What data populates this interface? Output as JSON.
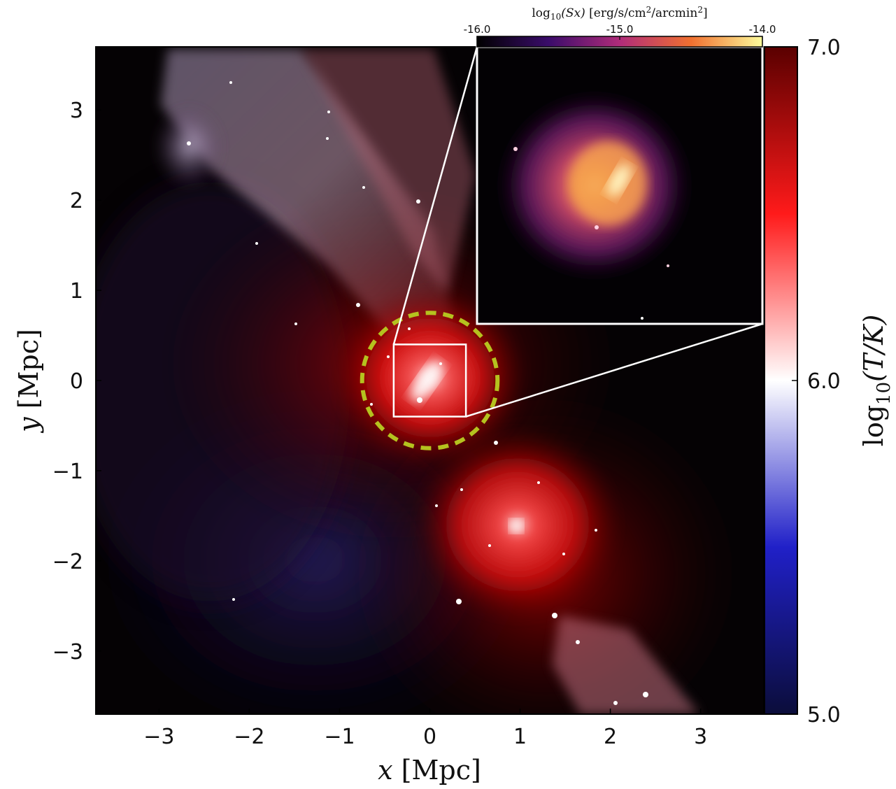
{
  "panel": {
    "x_axis": {
      "label_var": "x",
      "label_unit": "[Mpc]",
      "ticks": [
        "−3",
        "−2",
        "−1",
        "0",
        "1",
        "2",
        "3"
      ],
      "tick_values": [
        -3,
        -2,
        -1,
        0,
        1,
        2,
        3
      ],
      "range": [
        -3.7,
        3.7
      ]
    },
    "y_axis": {
      "label_var": "y",
      "label_unit": "[Mpc]",
      "ticks": [
        "3",
        "2",
        "1",
        "0",
        "−1",
        "−2",
        "−3"
      ],
      "tick_values": [
        3,
        2,
        1,
        0,
        -1,
        -2,
        -3
      ],
      "range": [
        -3.7,
        3.7
      ]
    },
    "circle": {
      "center": [
        0,
        0
      ],
      "radius_mpc": 0.75,
      "color": "#b5c21f"
    },
    "zoom_box": {
      "x_range": [
        -0.4,
        0.4
      ],
      "y_range": [
        -0.4,
        0.4
      ],
      "color": "#ffffff"
    }
  },
  "temperature_colorbar": {
    "label_prefix": "log",
    "label_sub": "10",
    "label_body": "(T/K)",
    "ticks": [
      "7.0",
      "6.0",
      "5.0"
    ],
    "tick_values": [
      7.0,
      6.0,
      5.0
    ],
    "range": [
      5.0,
      7.0
    ],
    "colors": [
      "#0b0d3a",
      "#2020c8",
      "#ffffff",
      "#ff1a1a",
      "#5a0000"
    ]
  },
  "inset": {
    "colorbar": {
      "label_prefix": "log",
      "label_sub": "10",
      "label_var": "(Sx)",
      "label_unit": "[erg/s/cm",
      "label_unit_sup": "2",
      "label_unit_mid": "/arcmin",
      "label_unit_sup2": "2",
      "label_unit_end": "]",
      "ticks": [
        "-16.0",
        "-15.0",
        "-14.0"
      ],
      "tick_values": [
        -16.0,
        -15.0,
        -14.0
      ],
      "range": [
        -16.0,
        -14.0
      ],
      "colors": [
        "#000000",
        "#3a0c6a",
        "#b02c7a",
        "#f07030",
        "#fcfc9c"
      ]
    }
  }
}
